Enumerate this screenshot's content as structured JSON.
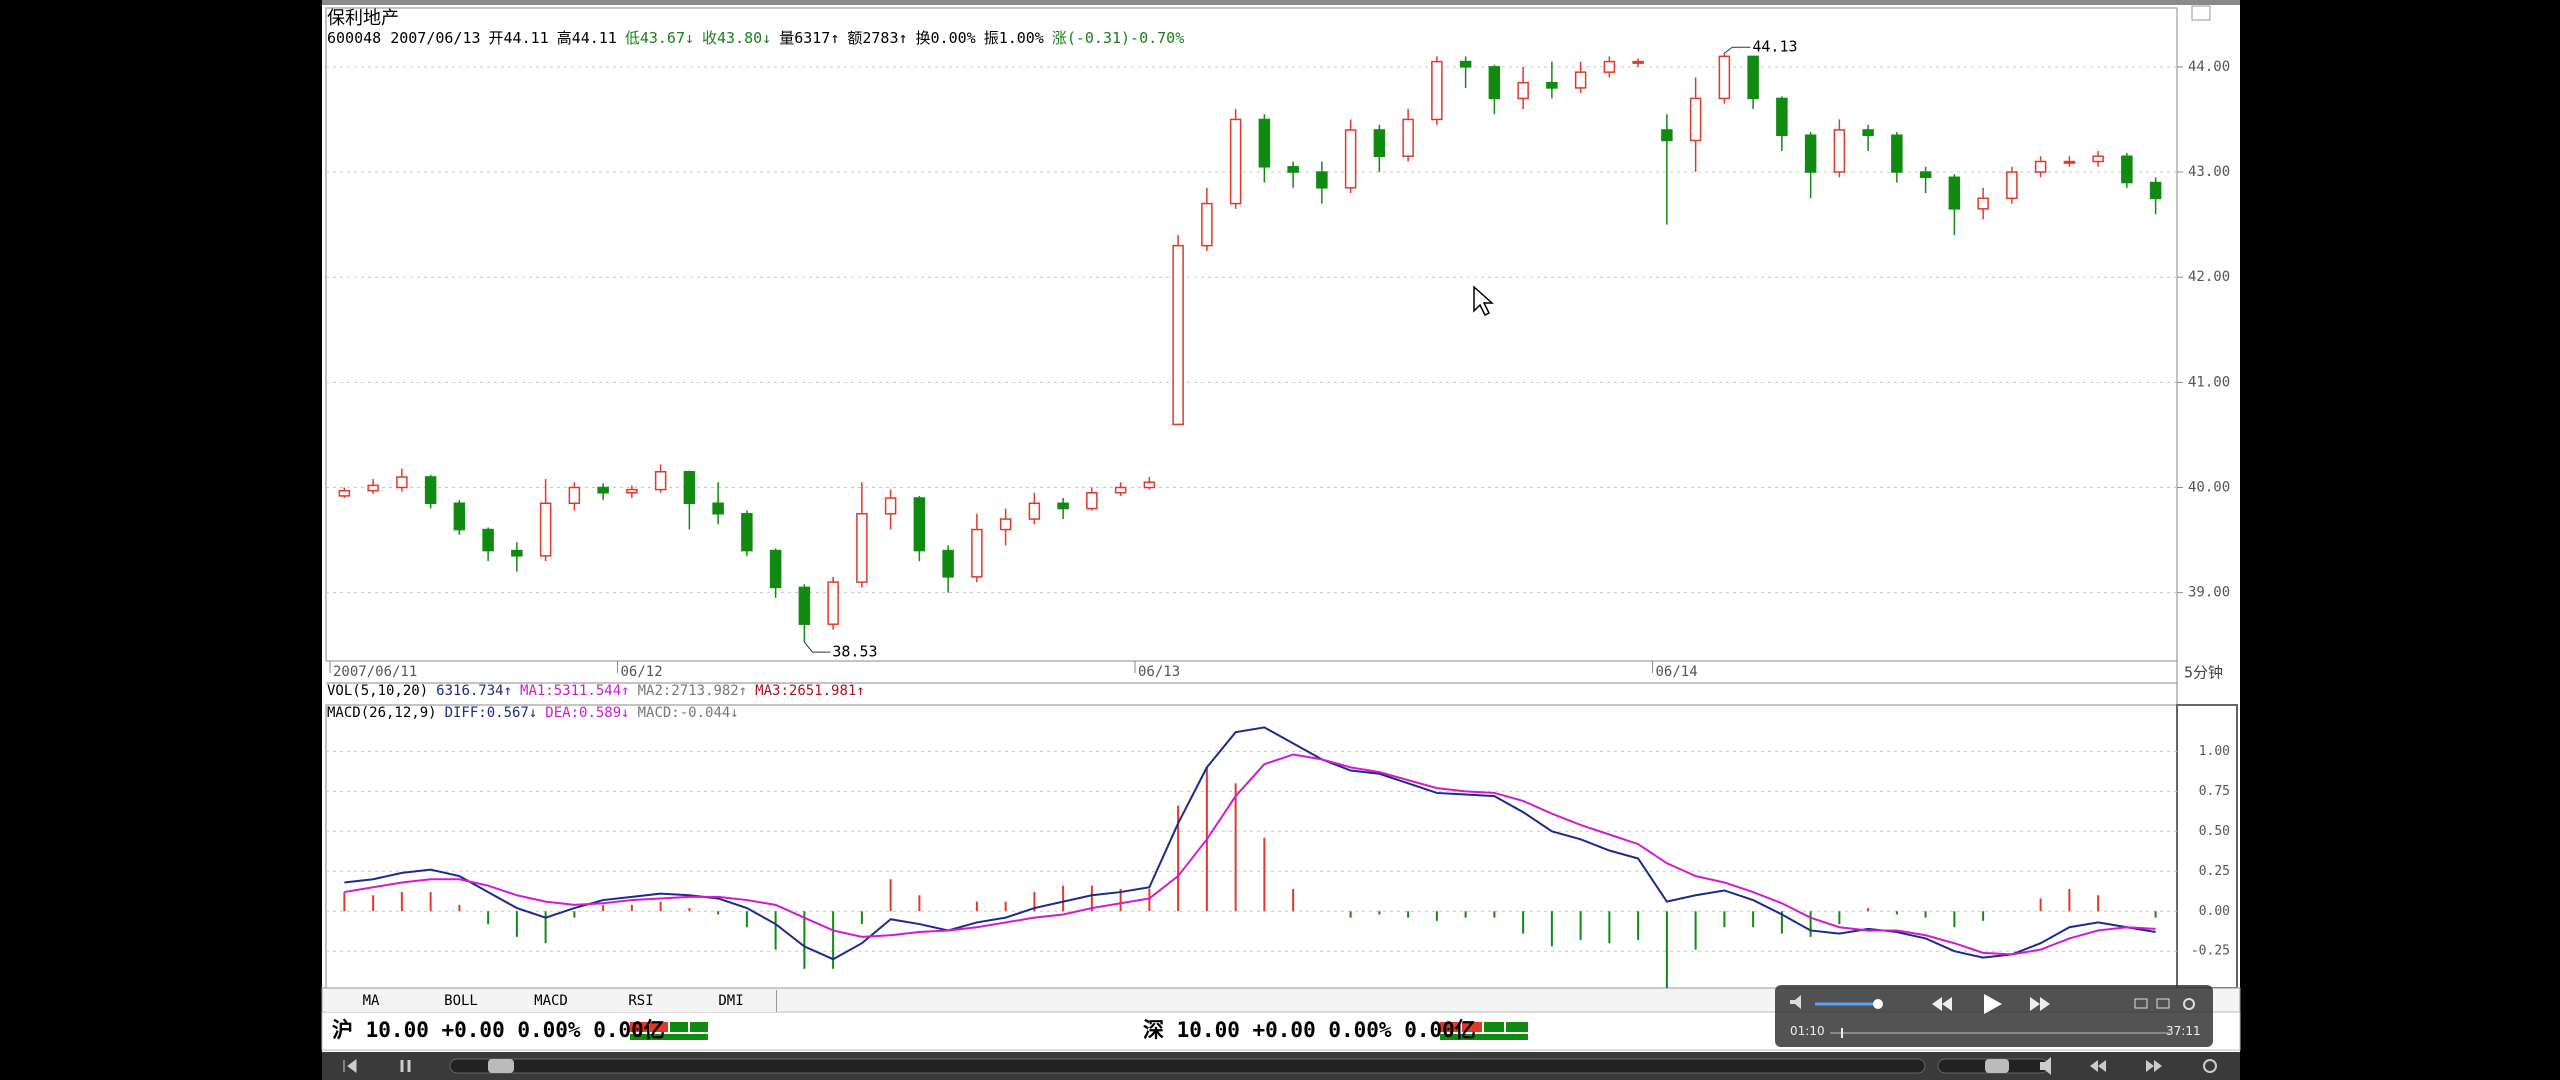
{
  "header": {
    "title": "保利地产",
    "info": [
      {
        "text": "600048 2007/06/13",
        "color": "#000000"
      },
      {
        "text": "开44.11",
        "color": "#000000"
      },
      {
        "text": "高44.11",
        "color": "#000000"
      },
      {
        "text": "低43.67↓",
        "color": "#1a7f1a"
      },
      {
        "text": "收43.80↓",
        "color": "#1a7f1a"
      },
      {
        "text": "量6317↑",
        "color": "#000000"
      },
      {
        "text": "额2783↑",
        "color": "#000000"
      },
      {
        "text": "换0.00%",
        "color": "#000000"
      },
      {
        "text": "振1.00%",
        "color": "#000000"
      },
      {
        "text": "涨(-0.31)-0.70%",
        "color": "#1a7f1a"
      }
    ]
  },
  "indicator_bar": {
    "vol": [
      {
        "text": "VOL(5,10,20)",
        "color": "#000000"
      },
      {
        "text": "6316.734↑",
        "color": "#1c2a8c"
      },
      {
        "text": "MA1:5311.544↑",
        "color": "#d21ad2"
      },
      {
        "text": "MA2:2713.982↑",
        "color": "#777777"
      },
      {
        "text": "MA3:2651.981↑",
        "color": "#b0121f"
      }
    ],
    "macd": [
      {
        "text": "MACD(26,12,9)",
        "color": "#000000"
      },
      {
        "text": "DIFF:0.567↓",
        "color": "#1c2a8c"
      },
      {
        "text": "DEA:0.589↓",
        "color": "#d21ad2"
      },
      {
        "text": "MACD:-0.044↓",
        "color": "#777777"
      }
    ]
  },
  "chart_data": [
    {
      "type": "candlestick",
      "categories": [
        "2007/06/11",
        null,
        null,
        null,
        null,
        null,
        null,
        null,
        null,
        null,
        "06/12",
        null,
        null,
        null,
        null,
        null,
        null,
        null,
        null,
        null,
        null,
        null,
        null,
        null,
        null,
        null,
        null,
        null,
        "06/13",
        null,
        null,
        null,
        null,
        null,
        null,
        null,
        null,
        null,
        null,
        null,
        null,
        null,
        null,
        null,
        null,
        null,
        "06/14",
        null,
        null,
        null,
        null,
        null,
        null,
        null,
        null,
        null,
        null,
        null,
        null,
        null,
        null,
        null,
        null,
        null
      ],
      "open": [
        39.92,
        39.97,
        40.0,
        40.1,
        39.85,
        39.6,
        39.4,
        39.35,
        39.85,
        40.0,
        39.95,
        39.98,
        40.15,
        39.85,
        39.75,
        39.4,
        39.05,
        38.7,
        39.1,
        39.75,
        39.9,
        39.4,
        39.15,
        39.6,
        39.7,
        39.85,
        39.8,
        39.95,
        40.0,
        40.6,
        42.3,
        42.7,
        43.5,
        43.05,
        43.0,
        42.85,
        43.4,
        43.15,
        43.5,
        44.05,
        44.0,
        43.7,
        43.85,
        43.8,
        43.95,
        44.05,
        43.4,
        43.3,
        43.7,
        44.1,
        43.7,
        43.35,
        43.0,
        43.4,
        43.35,
        43.0,
        42.95,
        42.65,
        42.75,
        43.0,
        43.1,
        43.1,
        43.15,
        42.9
      ],
      "high": [
        40.0,
        40.08,
        40.18,
        40.12,
        39.88,
        39.62,
        39.48,
        40.08,
        40.05,
        40.04,
        40.02,
        40.22,
        40.16,
        40.05,
        39.78,
        39.42,
        39.08,
        39.15,
        40.05,
        39.98,
        39.92,
        39.45,
        39.75,
        39.8,
        39.95,
        39.9,
        40.0,
        40.05,
        40.1,
        42.4,
        42.85,
        43.6,
        43.55,
        43.1,
        43.1,
        43.5,
        43.45,
        43.6,
        44.1,
        44.1,
        44.02,
        44.0,
        44.05,
        44.05,
        44.1,
        44.08,
        43.55,
        43.9,
        44.13,
        44.1,
        43.72,
        43.38,
        43.5,
        43.45,
        43.38,
        43.05,
        42.98,
        42.85,
        43.05,
        43.15,
        43.15,
        43.2,
        43.18,
        42.95
      ],
      "low": [
        39.9,
        39.94,
        39.96,
        39.8,
        39.55,
        39.3,
        39.2,
        39.3,
        39.78,
        39.88,
        39.9,
        39.95,
        39.6,
        39.65,
        39.35,
        38.95,
        38.53,
        38.65,
        39.05,
        39.6,
        39.3,
        39.0,
        39.1,
        39.45,
        39.65,
        39.7,
        39.78,
        39.92,
        39.98,
        40.6,
        42.25,
        42.65,
        42.9,
        42.85,
        42.7,
        42.8,
        43.0,
        43.1,
        43.45,
        43.8,
        43.55,
        43.6,
        43.7,
        43.75,
        43.9,
        44.0,
        42.5,
        43.0,
        43.65,
        43.6,
        43.2,
        42.75,
        42.95,
        43.2,
        42.9,
        42.8,
        42.4,
        42.55,
        42.7,
        42.95,
        43.05,
        43.05,
        42.85,
        42.6
      ],
      "close": [
        39.97,
        40.02,
        40.1,
        39.85,
        39.6,
        39.4,
        39.35,
        39.85,
        40.0,
        39.95,
        39.98,
        40.15,
        39.85,
        39.75,
        39.4,
        39.05,
        38.7,
        39.1,
        39.75,
        39.9,
        39.4,
        39.15,
        39.6,
        39.7,
        39.85,
        39.8,
        39.95,
        40.0,
        40.05,
        42.3,
        42.7,
        43.5,
        43.05,
        43.0,
        42.85,
        43.4,
        43.15,
        43.5,
        44.05,
        44.0,
        43.7,
        43.85,
        43.8,
        43.95,
        44.05,
        44.05,
        43.3,
        43.7,
        44.1,
        43.7,
        43.35,
        43.0,
        43.4,
        43.35,
        43.0,
        42.95,
        42.65,
        42.75,
        43.0,
        43.1,
        43.1,
        43.15,
        42.9,
        42.75
      ],
      "up_color": "#e0392b",
      "down_color": "#118a11",
      "ylim": [
        38.35,
        44.56
      ],
      "yticks": [
        {
          "value": 39,
          "label": "39.00"
        },
        {
          "value": 40,
          "label": "40.00"
        },
        {
          "value": 41,
          "label": "41.00"
        },
        {
          "value": 42,
          "label": "42.00"
        },
        {
          "value": 43,
          "label": "43.00"
        },
        {
          "value": 44,
          "label": "44.00"
        }
      ],
      "grid": true,
      "low_label": "38.53",
      "high_label": "44.13",
      "period": "5分钟"
    },
    {
      "type": "macd",
      "series": [
        {
          "color": "#1c2a8c",
          "values": [
            0.18,
            0.2,
            0.24,
            0.26,
            0.22,
            0.12,
            0.02,
            -0.04,
            0.02,
            0.07,
            0.09,
            0.11,
            0.1,
            0.08,
            0.02,
            -0.08,
            -0.22,
            -0.3,
            -0.2,
            -0.05,
            -0.08,
            -0.12,
            -0.07,
            -0.04,
            0.02,
            0.06,
            0.1,
            0.12,
            0.15,
            0.55,
            0.9,
            1.12,
            1.15,
            1.05,
            0.95,
            0.88,
            0.86,
            0.8,
            0.74,
            0.73,
            0.72,
            0.62,
            0.5,
            0.45,
            0.38,
            0.33,
            0.06,
            0.1,
            0.13,
            0.07,
            -0.02,
            -0.12,
            -0.14,
            -0.11,
            -0.13,
            -0.17,
            -0.25,
            -0.29,
            -0.27,
            -0.2,
            -0.1,
            -0.07,
            -0.1,
            -0.13
          ]
        },
        {
          "color": "#d21ad2",
          "values": [
            0.12,
            0.15,
            0.18,
            0.2,
            0.2,
            0.16,
            0.1,
            0.06,
            0.04,
            0.05,
            0.07,
            0.08,
            0.09,
            0.09,
            0.07,
            0.04,
            -0.04,
            -0.12,
            -0.16,
            -0.15,
            -0.13,
            -0.12,
            -0.1,
            -0.07,
            -0.04,
            -0.02,
            0.02,
            0.05,
            0.08,
            0.22,
            0.45,
            0.72,
            0.92,
            0.98,
            0.95,
            0.9,
            0.87,
            0.82,
            0.77,
            0.75,
            0.74,
            0.69,
            0.61,
            0.54,
            0.48,
            0.42,
            0.3,
            0.22,
            0.18,
            0.12,
            0.05,
            -0.04,
            -0.1,
            -0.12,
            -0.12,
            -0.15,
            -0.2,
            -0.26,
            -0.27,
            -0.24,
            -0.17,
            -0.12,
            -0.1,
            -0.11
          ]
        }
      ],
      "histogram": {
        "up_color": "#e0392b",
        "down_color": "#118a11",
        "values": [
          0.12,
          0.1,
          0.12,
          0.12,
          0.04,
          -0.08,
          -0.16,
          -0.2,
          -0.04,
          0.04,
          0.04,
          0.06,
          0.02,
          -0.02,
          -0.1,
          -0.24,
          -0.36,
          -0.36,
          -0.08,
          0.2,
          0.1,
          0,
          0.06,
          0.06,
          0.12,
          0.16,
          0.16,
          0.14,
          0.14,
          0.66,
          0.9,
          0.8,
          0.46,
          0.14,
          0,
          -0.04,
          -0.02,
          -0.04,
          -0.06,
          -0.04,
          -0.04,
          -0.14,
          -0.22,
          -0.18,
          -0.2,
          -0.18,
          -0.48,
          -0.24,
          -0.1,
          -0.1,
          -0.14,
          -0.16,
          -0.08,
          0.02,
          -0.02,
          -0.04,
          -0.1,
          -0.06,
          0,
          0.08,
          0.14,
          0.1,
          0,
          -0.04
        ]
      },
      "ylim": [
        -0.48,
        1.29
      ],
      "yticks": [
        {
          "value": 1,
          "label": "1.00"
        },
        {
          "value": 0.75,
          "label": "0.75"
        },
        {
          "value": 0.5,
          "label": "0.50"
        },
        {
          "value": 0.25,
          "label": "0.25"
        },
        {
          "value": 0,
          "label": "0.00"
        },
        {
          "value": -0.25,
          "label": "-0.25"
        }
      ],
      "grid": true
    }
  ],
  "tabs": [
    "MA",
    "BOLL",
    "MACD",
    "RSI",
    "DMI"
  ],
  "market_bar": [
    "沪 10.00 +0.00 0.00% 0.00亿",
    "深 10.00 +0.00 0.00% 0.00亿"
  ],
  "player": {
    "elapsed": "01:10",
    "duration": "37:11"
  }
}
